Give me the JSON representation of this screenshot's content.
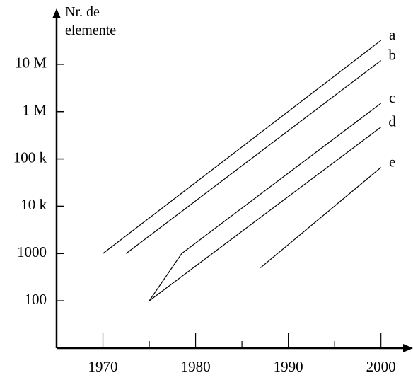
{
  "chart_data": {
    "type": "line",
    "ylabel": "Nr. de elemente",
    "log_y": true,
    "color": "#000000",
    "xlim": [
      1965,
      2003
    ],
    "xticks": [
      1970,
      1980,
      1990,
      2000
    ],
    "xminor_ticks": [
      1975,
      1985,
      1995
    ],
    "ylim": [
      10,
      100000000
    ],
    "yticks": [
      100,
      1000,
      {
        "value": 10000,
        "label": "10 k"
      },
      {
        "value": 100000,
        "label": "100 k"
      },
      {
        "value": 1000000,
        "label": "1 M"
      },
      {
        "value": 10000000,
        "label": "10 M"
      }
    ],
    "series": [
      {
        "name": "a",
        "x": [
          1970,
          2000
        ],
        "values": [
          1000,
          32000000
        ]
      },
      {
        "name": "b",
        "x": [
          1972.5,
          2000
        ],
        "values": [
          1000,
          12000000
        ]
      },
      {
        "name": "c",
        "x": [
          1975,
          1978.5,
          2000
        ],
        "values": [
          100,
          1000,
          1500000
        ]
      },
      {
        "name": "d",
        "x": [
          1975,
          2000
        ],
        "values": [
          100,
          470000
        ]
      },
      {
        "name": "e",
        "x": [
          1987,
          2000
        ],
        "values": [
          500,
          66000
        ]
      }
    ]
  }
}
